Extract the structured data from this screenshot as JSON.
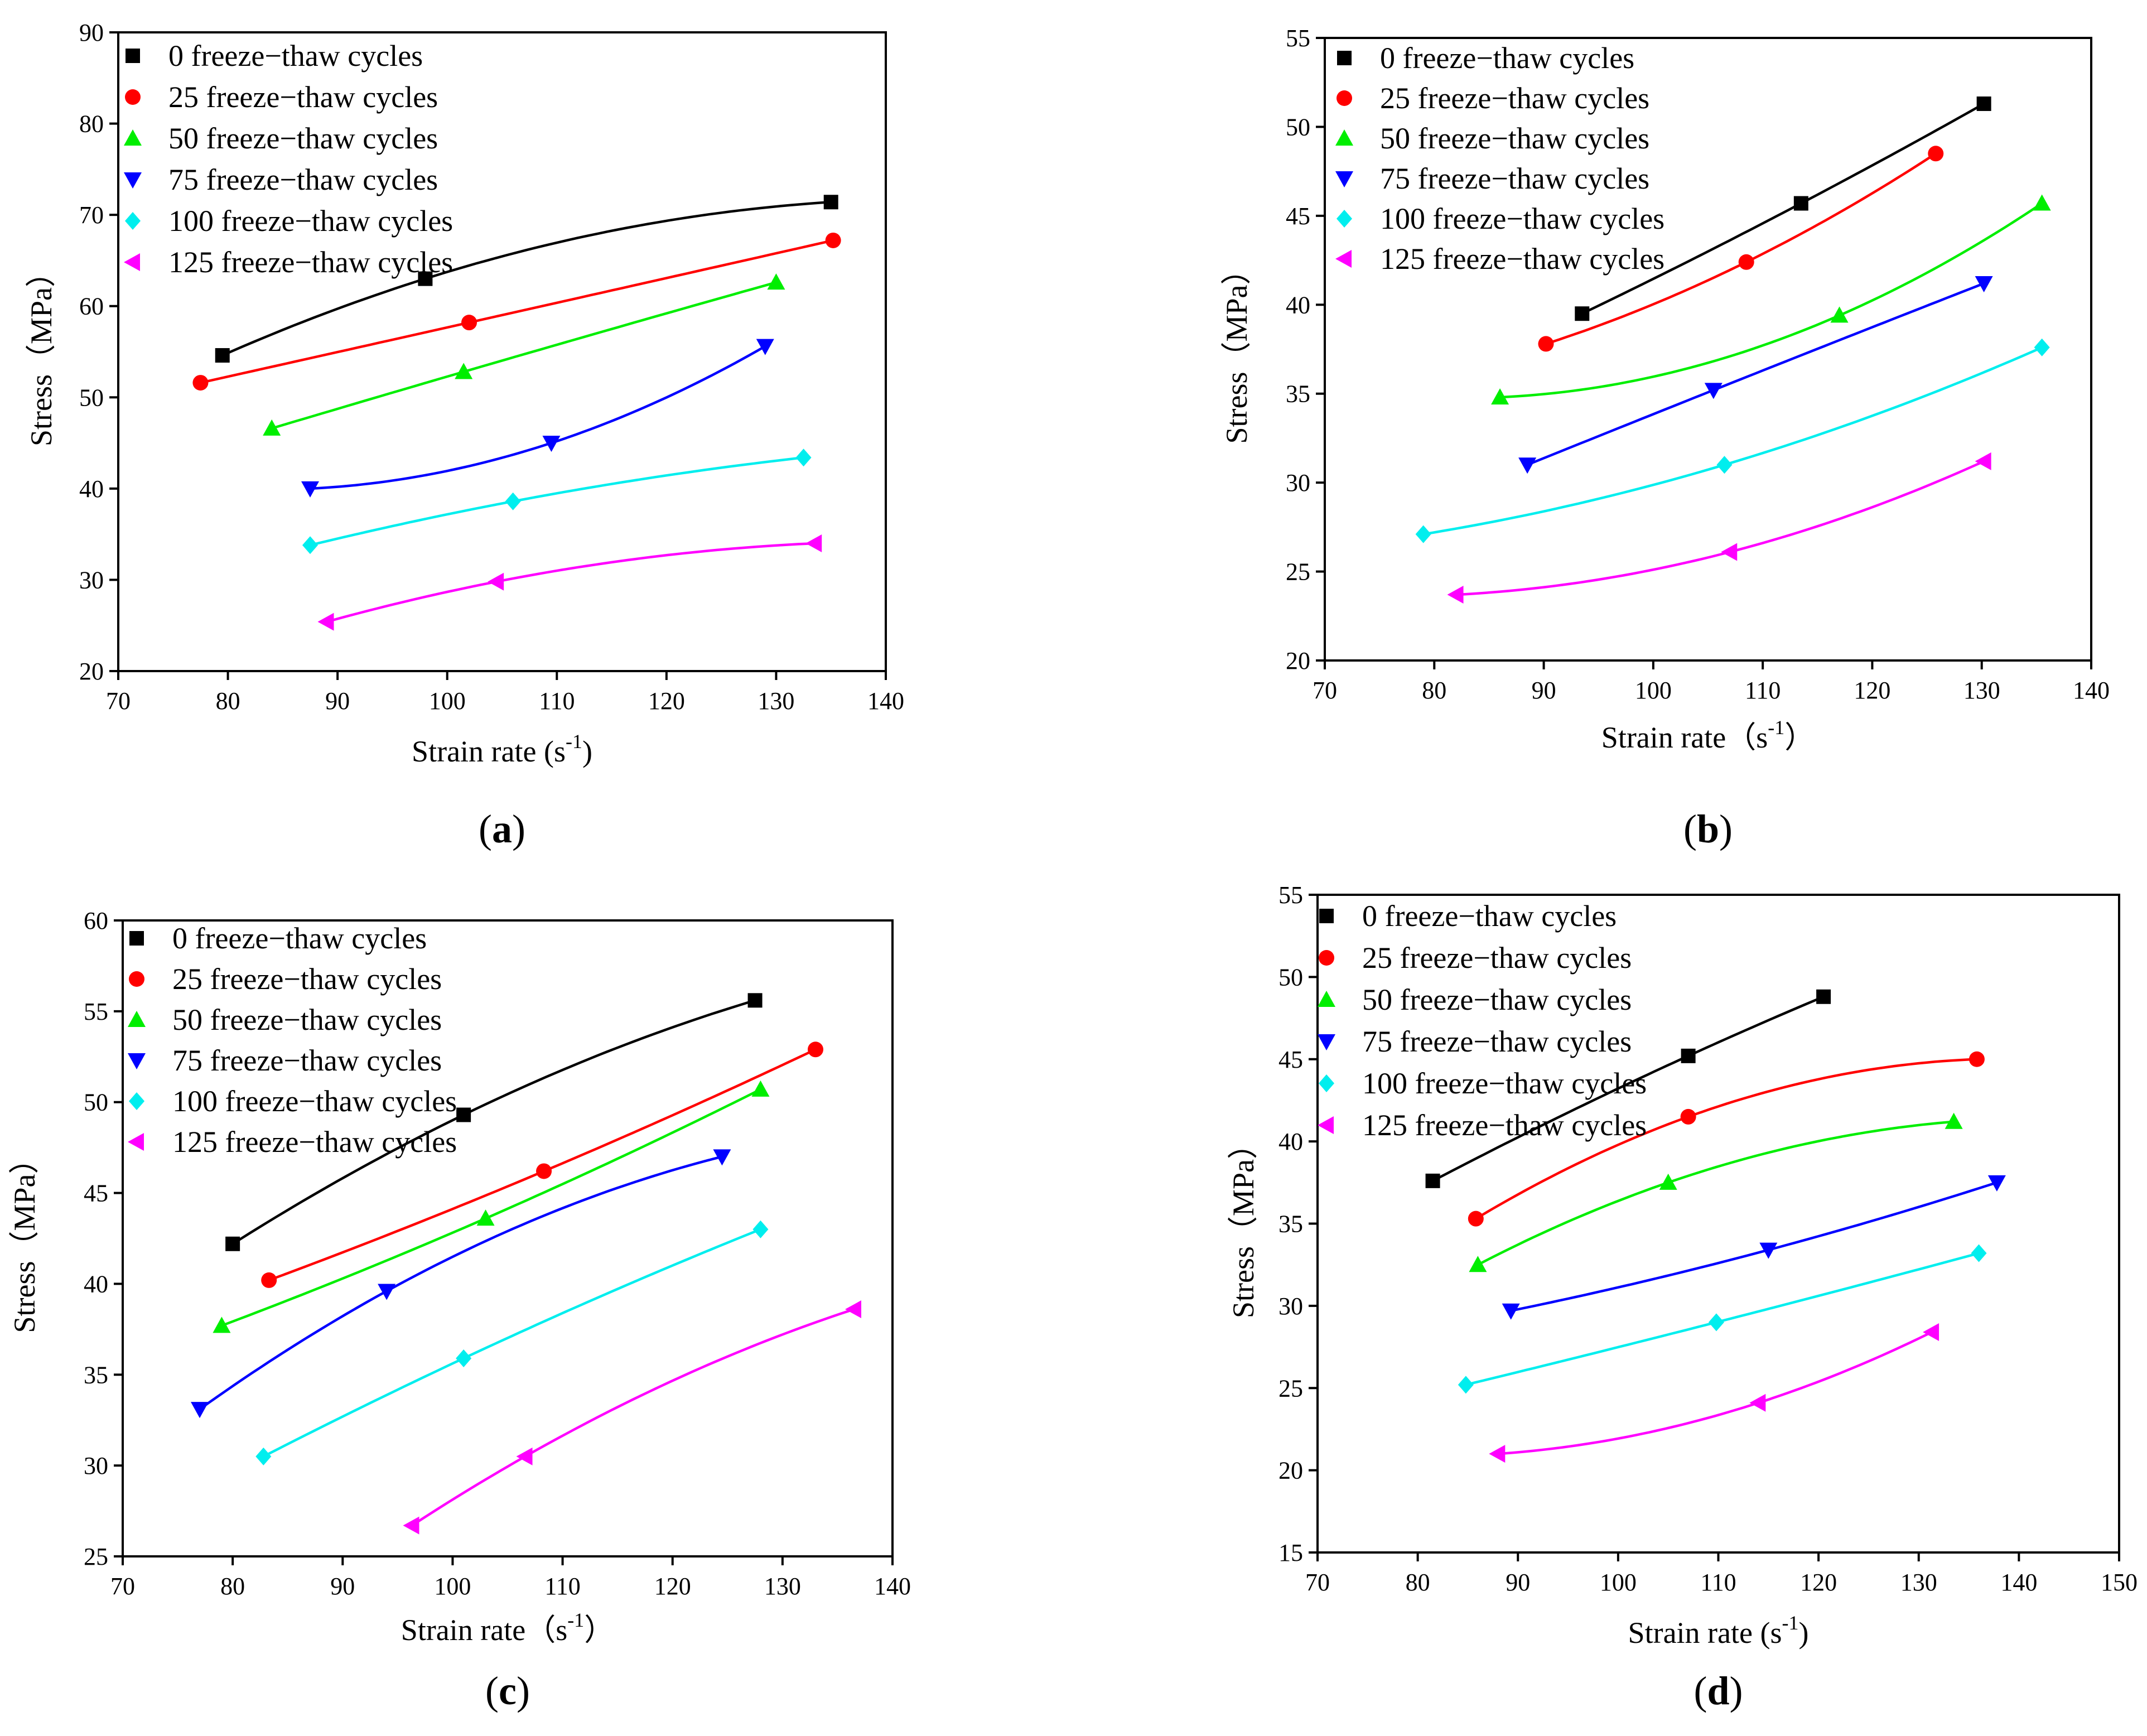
{
  "colors": {
    "0": "#000000",
    "25": "#ff0000",
    "50": "#00ee00",
    "75": "#0000ff",
    "100": "#00eeee",
    "125": "#ff00ff"
  },
  "chart_data": [
    {
      "type": "scatter",
      "panel": "a",
      "panel_open": "(",
      "panel_close": ")",
      "xlabel": "Strain rate (s",
      "xlabel_sup": "-1",
      "xlabel_close": ")",
      "ylabel": "Stress（MPa）",
      "xlim": [
        70,
        140
      ],
      "ylim": [
        20,
        90
      ],
      "xticks": [
        70,
        80,
        90,
        100,
        110,
        120,
        130,
        140
      ],
      "yticks": [
        20,
        30,
        40,
        50,
        60,
        70,
        80,
        90
      ],
      "legend": "top-left",
      "series": [
        {
          "name": "0 freeze−thaw cycles",
          "key": "0",
          "marker": "square",
          "x": [
            79.5,
            98,
            135
          ],
          "y": [
            54.6,
            63,
            71.4
          ]
        },
        {
          "name": "25 freeze−thaw cycles",
          "key": "25",
          "marker": "circle",
          "x": [
            77.5,
            102,
            135.2
          ],
          "y": [
            51.6,
            58.2,
            67.2
          ]
        },
        {
          "name": "50 freeze−thaw cycles",
          "key": "50",
          "marker": "triangle-up",
          "x": [
            84,
            101.5,
            130
          ],
          "y": [
            46.6,
            52.8,
            62.6
          ]
        },
        {
          "name": "75 freeze−thaw cycles",
          "key": "75",
          "marker": "triangle-down",
          "x": [
            87.5,
            109.5,
            129
          ],
          "y": [
            40,
            45,
            55.6
          ]
        },
        {
          "name": "100 freeze−thaw cycles",
          "key": "100",
          "marker": "diamond",
          "x": [
            87.5,
            106,
            132.5
          ],
          "y": [
            33.8,
            38.6,
            43.4
          ]
        },
        {
          "name": "125 freeze−thaw cycles",
          "key": "125",
          "marker": "triangle-left",
          "x": [
            89,
            104.5,
            133.5
          ],
          "y": [
            25.4,
            29.8,
            34
          ]
        }
      ]
    },
    {
      "type": "scatter",
      "panel": "b",
      "panel_open": "(",
      "panel_close": ")",
      "xlabel": "Strain rate（s",
      "xlabel_sup": "-1",
      "xlabel_close": "）",
      "ylabel": "Stress（MPa）",
      "xlim": [
        70,
        140
      ],
      "ylim": [
        20,
        55
      ],
      "xticks": [
        70,
        80,
        90,
        100,
        110,
        120,
        130,
        140
      ],
      "yticks": [
        20,
        25,
        30,
        35,
        40,
        45,
        50,
        55
      ],
      "legend": "top-left",
      "series": [
        {
          "name": "0 freeze−thaw cycles",
          "key": "0",
          "marker": "square",
          "x": [
            93.5,
            113.5,
            130.2
          ],
          "y": [
            39.5,
            45.7,
            51.3
          ]
        },
        {
          "name": "25 freeze−thaw cycles",
          "key": "25",
          "marker": "circle",
          "x": [
            90.2,
            108.5,
            125.8
          ],
          "y": [
            37.8,
            42.4,
            48.5
          ]
        },
        {
          "name": "50 freeze−thaw cycles",
          "key": "50",
          "marker": "triangle-up",
          "x": [
            86,
            117,
            135.5
          ],
          "y": [
            34.8,
            39.4,
            45.7
          ]
        },
        {
          "name": "75 freeze−thaw cycles",
          "key": "75",
          "marker": "triangle-down",
          "x": [
            88.5,
            105.5,
            130.2
          ],
          "y": [
            31,
            35.2,
            41.2
          ]
        },
        {
          "name": "100 freeze−thaw cycles",
          "key": "100",
          "marker": "diamond",
          "x": [
            79,
            106.5,
            135.5
          ],
          "y": [
            27.1,
            31,
            37.6
          ]
        },
        {
          "name": "125 freeze−thaw cycles",
          "key": "125",
          "marker": "triangle-left",
          "x": [
            82,
            107,
            130.2
          ],
          "y": [
            23.7,
            26.1,
            31.2
          ]
        }
      ]
    },
    {
      "type": "scatter",
      "panel": "c",
      "panel_open": "(",
      "panel_close": ")",
      "xlabel": "Strain rate（s",
      "xlabel_sup": "-1",
      "xlabel_close": "）",
      "ylabel": "Stress（MPa）",
      "xlim": [
        70,
        140
      ],
      "ylim": [
        25,
        60
      ],
      "xticks": [
        70,
        80,
        90,
        100,
        110,
        120,
        130,
        140
      ],
      "yticks": [
        25,
        30,
        35,
        40,
        45,
        50,
        55,
        60
      ],
      "legend": "top-left",
      "series": [
        {
          "name": "0 freeze−thaw cycles",
          "key": "0",
          "marker": "square",
          "x": [
            80,
            101,
            127.5
          ],
          "y": [
            42.2,
            49.3,
            55.6
          ]
        },
        {
          "name": "25 freeze−thaw cycles",
          "key": "25",
          "marker": "circle",
          "x": [
            83.3,
            108.3,
            133
          ],
          "y": [
            40.2,
            46.2,
            52.9
          ]
        },
        {
          "name": "50 freeze−thaw cycles",
          "key": "50",
          "marker": "triangle-up",
          "x": [
            79,
            103,
            128
          ],
          "y": [
            37.7,
            43.6,
            50.7
          ]
        },
        {
          "name": "75 freeze−thaw cycles",
          "key": "75",
          "marker": "triangle-down",
          "x": [
            77,
            94,
            124.5
          ],
          "y": [
            33.1,
            39.6,
            47
          ]
        },
        {
          "name": "100 freeze−thaw cycles",
          "key": "100",
          "marker": "diamond",
          "x": [
            82.8,
            101,
            128
          ],
          "y": [
            30.5,
            35.9,
            43
          ]
        },
        {
          "name": "125 freeze−thaw cycles",
          "key": "125",
          "marker": "triangle-left",
          "x": [
            96.3,
            106.6,
            136.5
          ],
          "y": [
            26.7,
            30.5,
            38.6
          ]
        }
      ]
    },
    {
      "type": "scatter",
      "panel": "d",
      "panel_open": "(",
      "panel_close": ")",
      "xlabel": "Strain rate (s",
      "xlabel_sup": "-1",
      "xlabel_close": ")",
      "ylabel": "Stress（MPa）",
      "xlim": [
        70,
        150
      ],
      "ylim": [
        15,
        55
      ],
      "xticks": [
        70,
        80,
        90,
        100,
        110,
        120,
        130,
        140,
        150
      ],
      "yticks": [
        15,
        20,
        25,
        30,
        35,
        40,
        45,
        50,
        55
      ],
      "legend": "top-left",
      "series": [
        {
          "name": "0 freeze−thaw cycles",
          "key": "0",
          "marker": "square",
          "x": [
            81.5,
            107,
            120.5
          ],
          "y": [
            37.6,
            45.2,
            48.8
          ]
        },
        {
          "name": "25 freeze−thaw cycles",
          "key": "25",
          "marker": "circle",
          "x": [
            85.8,
            107,
            135.8
          ],
          "y": [
            35.3,
            41.5,
            45
          ]
        },
        {
          "name": "50 freeze−thaw cycles",
          "key": "50",
          "marker": "triangle-up",
          "x": [
            86,
            105,
            133.5
          ],
          "y": [
            32.5,
            37.5,
            41.2
          ]
        },
        {
          "name": "75 freeze−thaw cycles",
          "key": "75",
          "marker": "triangle-down",
          "x": [
            89.3,
            115,
            137.8
          ],
          "y": [
            29.7,
            33.4,
            37.5
          ]
        },
        {
          "name": "100 freeze−thaw cycles",
          "key": "100",
          "marker": "diamond",
          "x": [
            84.8,
            109.8,
            136
          ],
          "y": [
            25.2,
            29,
            33.2
          ]
        },
        {
          "name": "125 freeze−thaw cycles",
          "key": "125",
          "marker": "triangle-left",
          "x": [
            88,
            114,
            131.3
          ],
          "y": [
            21,
            24.1,
            28.4
          ]
        }
      ]
    }
  ]
}
